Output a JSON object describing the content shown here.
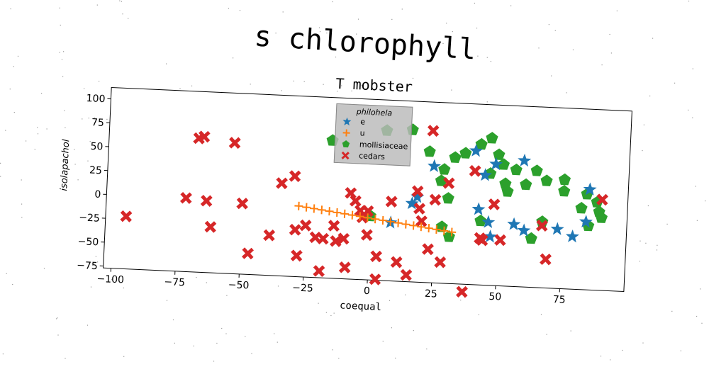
{
  "page": {
    "suptitle": "s chlorophyll"
  },
  "chart_data": {
    "type": "scatter",
    "title": "T mobster",
    "xlabel": "coequal",
    "ylabel": "isolapachol",
    "xlim": [
      -103,
      100
    ],
    "ylim": [
      -77,
      112
    ],
    "xticks": [
      -100,
      -75,
      -50,
      -25,
      0,
      25,
      50,
      75
    ],
    "yticks": [
      -75,
      -50,
      -25,
      0,
      25,
      50,
      75,
      100
    ],
    "grid": false,
    "legend": {
      "title": "philohela",
      "placement": "upper-center"
    },
    "series": [
      {
        "name": "e",
        "marker": "star",
        "color": "#1f77b4",
        "x": [
          40,
          48,
          44,
          59,
          24,
          18,
          16,
          42,
          46,
          56,
          60,
          47,
          73,
          79,
          85,
          84,
          8
        ],
        "y": [
          63,
          50,
          38,
          55,
          45,
          12,
          5,
          2,
          -11,
          -12,
          -18,
          -26,
          -15,
          -22,
          28,
          -6,
          -16
        ]
      },
      {
        "name": "u",
        "marker": "plus",
        "color": "#ff7f0e",
        "x": [
          -28,
          -25,
          -22,
          -19,
          -16,
          -13,
          -10,
          -7,
          -4,
          -1,
          2,
          5,
          8,
          11,
          14,
          17,
          20,
          23,
          26,
          29,
          32
        ],
        "y": [
          -3,
          -4,
          -5,
          -6,
          -7,
          -8,
          -9,
          -10,
          -11,
          -12,
          -13,
          -14,
          -15,
          -16,
          -17,
          -18,
          -19,
          -20,
          -21,
          -22,
          -23
        ]
      },
      {
        "name": "mollisiaceae",
        "marker": "pentagon",
        "color": "#2ca02c",
        "x": [
          -16,
          5,
          15,
          22,
          32,
          36,
          42,
          46,
          49,
          51,
          56,
          52,
          64,
          28,
          27,
          30,
          46,
          53,
          60,
          68,
          75,
          75,
          84,
          82,
          85,
          88,
          89,
          90,
          0,
          28,
          43,
          67,
          63,
          31
        ],
        "y": [
          67,
          80,
          82,
          60,
          55,
          60,
          70,
          77,
          60,
          50,
          45,
          30,
          45,
          42,
          30,
          12,
          40,
          22,
          30,
          35,
          37,
          25,
          23,
          8,
          -10,
          15,
          5,
          -1,
          -10,
          -18,
          -10,
          -8,
          -26,
          -28
        ],
        "partially_hidden_by_legend": true
      },
      {
        "name": "cedars",
        "marker": "x",
        "color": "#d62728",
        "x": [
          -95,
          -68,
          -66,
          -54,
          -72,
          -64,
          -62,
          -50,
          -47,
          -39,
          -35,
          -30,
          -28,
          -19,
          -25,
          -18,
          -21,
          -8,
          -6,
          -9,
          -4,
          -1,
          -1,
          -10,
          -13,
          3,
          3,
          11,
          15,
          23,
          25,
          30,
          19,
          20,
          28,
          37,
          40,
          43,
          44,
          48,
          51,
          67,
          69,
          90,
          23,
          8,
          18,
          -14,
          -3,
          -29
        ],
        "y": [
          -22,
          63,
          65,
          60,
          0,
          -2,
          -29,
          -3,
          -55,
          -35,
          20,
          28,
          -55,
          -70,
          -23,
          -36,
          -35,
          13,
          5,
          -65,
          -5,
          -5,
          -30,
          -35,
          -38,
          -52,
          -76,
          -57,
          -70,
          82,
          10,
          28,
          0,
          -13,
          -55,
          -85,
          42,
          -28,
          -30,
          8,
          -29,
          -12,
          -47,
          18,
          -42,
          6,
          18,
          -22,
          -12,
          -28
        ]
      }
    ]
  },
  "colors": {
    "e": "#1f77b4",
    "u": "#ff7f0e",
    "mollisiaceae": "#2ca02c",
    "cedars": "#d62728",
    "legend_background": "#b9b9b9"
  }
}
